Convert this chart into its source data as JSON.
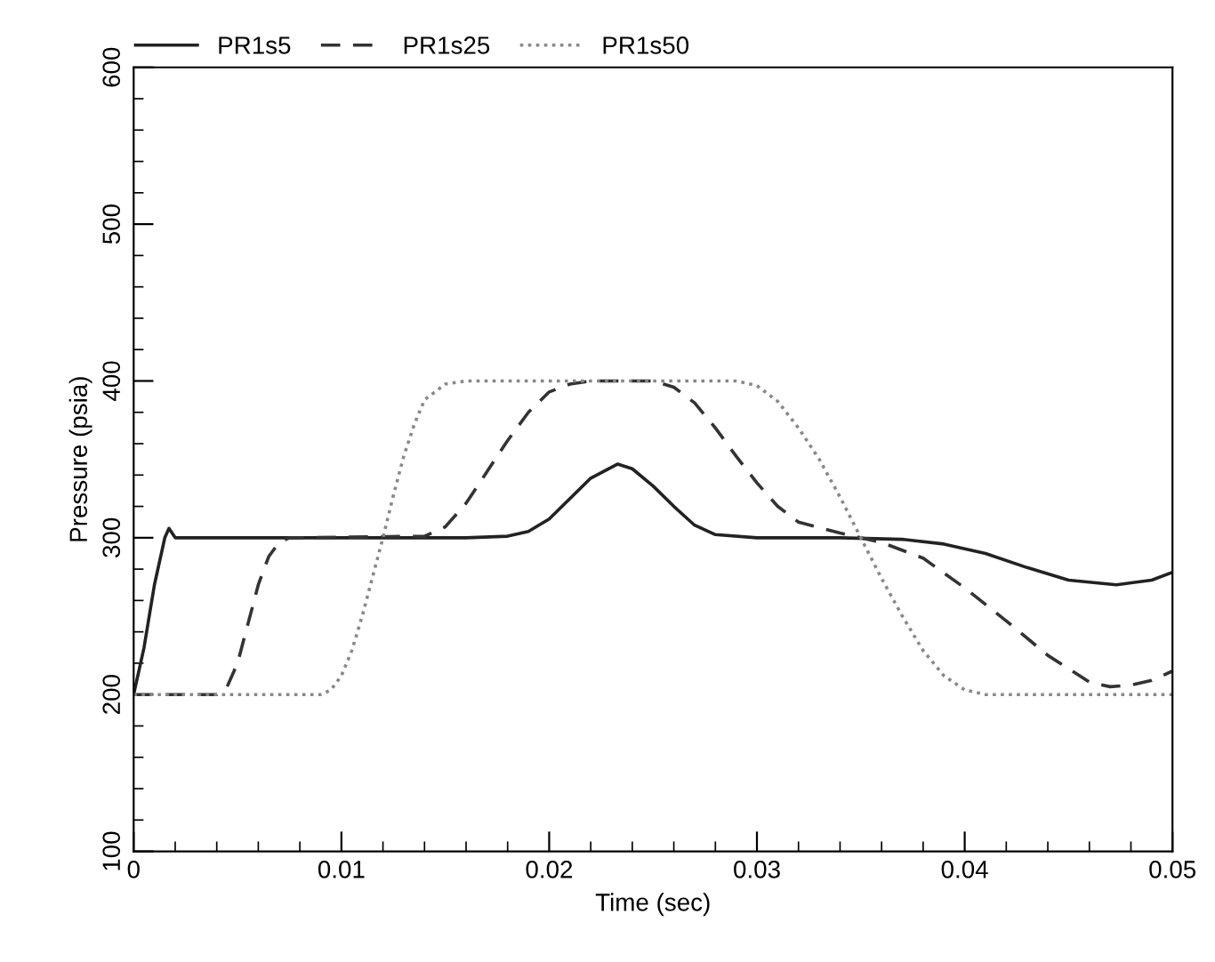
{
  "chart_data": {
    "type": "line",
    "xlabel": "Time (sec)",
    "ylabel": "Pressure (psia)",
    "xlim": [
      0,
      0.05
    ],
    "xticks": [
      0,
      0.01,
      0.02,
      0.03,
      0.04,
      0.05
    ],
    "ylim": [
      100,
      600
    ],
    "yticks": [
      100,
      200,
      300,
      400,
      500,
      600
    ],
    "grid": false,
    "legend": "top left",
    "marker": "none",
    "series": [
      {
        "name": "PR1s5",
        "color": "#222222",
        "line_style": "solid",
        "x": [
          0,
          0.0005,
          0.001,
          0.0015,
          0.0017,
          0.002,
          0.003,
          0.016,
          0.018,
          0.019,
          0.02,
          0.021,
          0.022,
          0.0233,
          0.024,
          0.025,
          0.026,
          0.027,
          0.028,
          0.03,
          0.034,
          0.037,
          0.039,
          0.041,
          0.043,
          0.045,
          0.0473,
          0.049,
          0.05
        ],
        "values": [
          200,
          230,
          270,
          300,
          306,
          300,
          300,
          300,
          301,
          304,
          312,
          325,
          338,
          347,
          344,
          333,
          320,
          308,
          302,
          300,
          300,
          299,
          296,
          290,
          281,
          273,
          270,
          273,
          278
        ]
      },
      {
        "name": "PR1s25",
        "color": "#333333",
        "line_style": "dashed",
        "x": [
          0,
          0.004,
          0.0045,
          0.005,
          0.0055,
          0.006,
          0.0065,
          0.007,
          0.0075,
          0.008,
          0.014,
          0.015,
          0.016,
          0.017,
          0.018,
          0.019,
          0.02,
          0.021,
          0.022,
          0.025,
          0.026,
          0.027,
          0.028,
          0.029,
          0.03,
          0.031,
          0.032,
          0.034,
          0.036,
          0.038,
          0.04,
          0.042,
          0.044,
          0.046,
          0.047,
          0.048,
          0.049,
          0.05
        ],
        "values": [
          200,
          200,
          205,
          220,
          245,
          270,
          288,
          297,
          300,
          300,
          301,
          307,
          322,
          342,
          362,
          380,
          393,
          398,
          400,
          400,
          396,
          386,
          370,
          352,
          335,
          320,
          310,
          303,
          297,
          287,
          268,
          247,
          225,
          208,
          205,
          206,
          209,
          215
        ]
      },
      {
        "name": "PR1s50",
        "color": "#888888",
        "line_style": "dotted",
        "x": [
          0,
          0.009,
          0.0095,
          0.01,
          0.0105,
          0.011,
          0.0115,
          0.012,
          0.0125,
          0.013,
          0.0135,
          0.014,
          0.015,
          0.016,
          0.029,
          0.03,
          0.031,
          0.032,
          0.033,
          0.034,
          0.035,
          0.036,
          0.037,
          0.038,
          0.039,
          0.04,
          0.041,
          0.05
        ],
        "values": [
          200,
          200,
          203,
          212,
          228,
          250,
          275,
          300,
          327,
          352,
          372,
          388,
          398,
          400,
          400,
          397,
          387,
          370,
          350,
          326,
          300,
          274,
          250,
          228,
          212,
          203,
          200,
          200
        ]
      }
    ]
  }
}
